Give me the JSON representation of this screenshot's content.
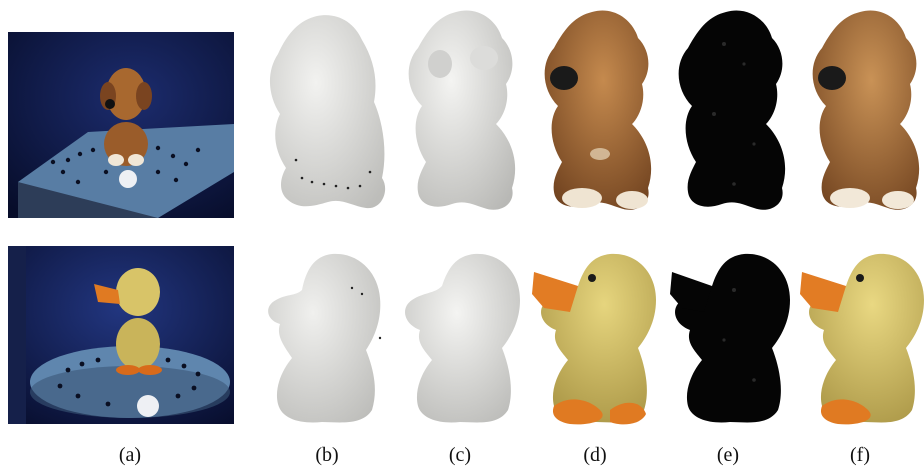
{
  "figure": {
    "captions": [
      "(a)",
      "(b)",
      "(c)",
      "(d)",
      "(e)",
      "(f)"
    ],
    "rows": [
      {
        "subject": "dog figurine",
        "panels": [
          {
            "label": "(a)",
            "kind": "photo"
          },
          {
            "label": "(b)",
            "kind": "mesh-noisy"
          },
          {
            "label": "(c)",
            "kind": "mesh-smooth"
          },
          {
            "label": "(d)",
            "kind": "textured"
          },
          {
            "label": "(e)",
            "kind": "residual"
          },
          {
            "label": "(f)",
            "kind": "textured"
          }
        ]
      },
      {
        "subject": "duck figurine",
        "panels": [
          {
            "label": "(a)",
            "kind": "photo"
          },
          {
            "label": "(b)",
            "kind": "mesh-noisy"
          },
          {
            "label": "(c)",
            "kind": "mesh-smooth"
          },
          {
            "label": "(d)",
            "kind": "textured"
          },
          {
            "label": "(e)",
            "kind": "residual"
          },
          {
            "label": "(f)",
            "kind": "textured"
          }
        ]
      }
    ]
  },
  "colors": {
    "photo_bg": "#0e1a4a",
    "turntable": "#6e8fb2",
    "mesh": "#e4e4e2",
    "dog": "#a0602c",
    "duck_body": "#d6c266",
    "duck_beak": "#e07a22",
    "residual": "#050505"
  }
}
